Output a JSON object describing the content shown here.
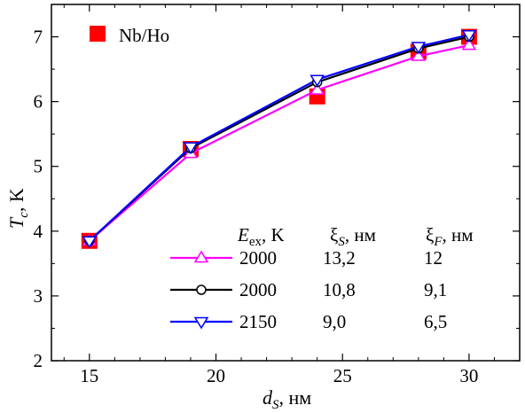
{
  "chart_data": {
    "type": "line",
    "xlabel": {
      "main": "d",
      "sub": "S",
      "unit": ", нм"
    },
    "ylabel": {
      "main": "T",
      "sub": "c",
      "unit": ", K"
    },
    "xlim": [
      13.5,
      32
    ],
    "ylim": [
      2,
      7.5
    ],
    "xticks": [
      15,
      20,
      25,
      30
    ],
    "yticks": [
      2,
      3,
      4,
      5,
      6,
      7
    ],
    "experiment": {
      "name": "Nb/Ho",
      "color": "#ff0000",
      "x": [
        15,
        19,
        24,
        28,
        30
      ],
      "y": [
        3.85,
        5.27,
        6.08,
        6.77,
        7.0
      ]
    },
    "legend_header": {
      "col1": {
        "main": "E",
        "sub": "ex",
        "unit": ", K"
      },
      "col2": {
        "main": "ξ",
        "sub": "S",
        "unit": ", нм"
      },
      "col3": {
        "main": "ξ",
        "sub": "F",
        "unit": ", нм"
      }
    },
    "series": [
      {
        "color": "#ff00ff",
        "marker": "triangle-up",
        "e_ex": "2000",
        "xi_s": "13,2",
        "xi_f": "12",
        "x": [
          15,
          19,
          24,
          28,
          30
        ],
        "y": [
          3.85,
          5.2,
          6.18,
          6.7,
          6.87
        ]
      },
      {
        "color": "#000000",
        "marker": "circle",
        "e_ex": "2000",
        "xi_s": "10,8",
        "xi_f": "9,1",
        "x": [
          15,
          19,
          24,
          28,
          30
        ],
        "y": [
          3.85,
          5.28,
          6.3,
          6.82,
          7.0
        ]
      },
      {
        "color": "#0000ff",
        "marker": "triangle-down",
        "e_ex": "2150",
        "xi_s": "9,0",
        "xi_f": "6,5",
        "x": [
          15,
          19,
          24,
          28,
          30
        ],
        "y": [
          3.85,
          5.3,
          6.34,
          6.85,
          7.03
        ]
      }
    ]
  }
}
